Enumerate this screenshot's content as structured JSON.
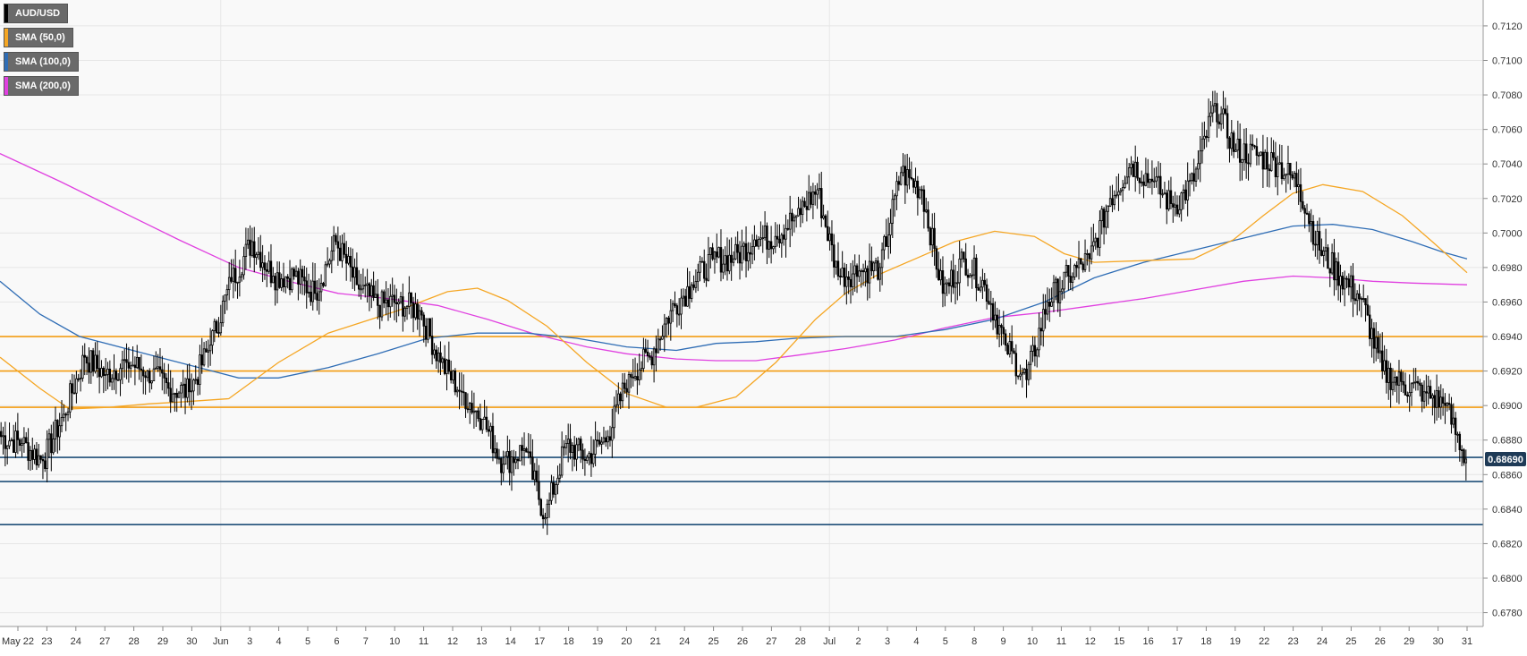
{
  "legend": [
    {
      "label": "AUD/USD",
      "color": "#000000"
    },
    {
      "label": "SMA (50,0)",
      "color": "#f5a623"
    },
    {
      "label": "SMA (100,0)",
      "color": "#2f6db5"
    },
    {
      "label": "SMA (200,0)",
      "color": "#e040e0"
    }
  ],
  "colors": {
    "bull": "#ffffff",
    "bear": "#000000",
    "sma50": "#f5a623",
    "sma100": "#2f6db5",
    "sma200": "#e040e0",
    "resistance": "#f39c12",
    "support": "#1f4e79",
    "plot_bg": "#f9f9f9",
    "grid": "#e6e6e6"
  },
  "chart_data": {
    "type": "candlestick",
    "title": "",
    "xlabel": "",
    "ylabel": "",
    "ylim": [
      0.6772,
      0.7135
    ],
    "y_ticks": [
      "0.7120",
      "0.7100",
      "0.7080",
      "0.7060",
      "0.7040",
      "0.7020",
      "0.7000",
      "0.6980",
      "0.6960",
      "0.6940",
      "0.6920",
      "0.6900",
      "0.6880",
      "0.6860",
      "0.6840",
      "0.6820",
      "0.6800",
      "0.6780"
    ],
    "x_ticks": [
      "May 22",
      "23",
      "24",
      "27",
      "28",
      "29",
      "30",
      "Jun",
      "3",
      "4",
      "5",
      "6",
      "7",
      "10",
      "11",
      "12",
      "13",
      "14",
      "17",
      "18",
      "19",
      "20",
      "21",
      "24",
      "25",
      "26",
      "27",
      "28",
      "Jul",
      "2",
      "3",
      "4",
      "5",
      "8",
      "9",
      "10",
      "11",
      "12",
      "15",
      "16",
      "17",
      "18",
      "19",
      "22",
      "23",
      "24",
      "25",
      "26",
      "29",
      "30",
      "31"
    ],
    "last_price": "0.68690",
    "close_anchors": [
      0.6882,
      0.6878,
      0.6868,
      0.6895,
      0.6928,
      0.6918,
      0.6925,
      0.692,
      0.691,
      0.6908,
      0.6935,
      0.6972,
      0.6995,
      0.6975,
      0.6975,
      0.6965,
      0.6995,
      0.697,
      0.6958,
      0.696,
      0.6955,
      0.6925,
      0.6908,
      0.6892,
      0.6866,
      0.6875,
      0.6835,
      0.6878,
      0.687,
      0.6882,
      0.6918,
      0.6928,
      0.6955,
      0.697,
      0.6985,
      0.6985,
      0.6996,
      0.6998,
      0.701,
      0.7025,
      0.6975,
      0.6978,
      0.698,
      0.7035,
      0.7025,
      0.6965,
      0.6985,
      0.697,
      0.6935,
      0.6915,
      0.696,
      0.6975,
      0.6985,
      0.702,
      0.704,
      0.703,
      0.7015,
      0.703,
      0.7075,
      0.7048,
      0.7045,
      0.704,
      0.7028,
      0.699,
      0.6975,
      0.6962,
      0.692,
      0.6912,
      0.6908,
      0.69,
      0.6869
    ],
    "sma50": [
      [
        0,
        0.6928
      ],
      [
        40,
        0.691
      ],
      [
        70,
        0.6898
      ],
      [
        110,
        0.6899
      ],
      [
        150,
        0.6901
      ],
      [
        180,
        0.6902
      ],
      [
        230,
        0.6904
      ],
      [
        280,
        0.6925
      ],
      [
        330,
        0.6942
      ],
      [
        400,
        0.6955
      ],
      [
        450,
        0.6966
      ],
      [
        480,
        0.6968
      ],
      [
        510,
        0.6961
      ],
      [
        550,
        0.6946
      ],
      [
        590,
        0.6925
      ],
      [
        630,
        0.6907
      ],
      [
        670,
        0.6899
      ],
      [
        700,
        0.6899
      ],
      [
        740,
        0.6905
      ],
      [
        780,
        0.6925
      ],
      [
        820,
        0.695
      ],
      [
        850,
        0.6965
      ],
      [
        880,
        0.6975
      ],
      [
        920,
        0.6985
      ],
      [
        960,
        0.6995
      ],
      [
        1000,
        0.7001
      ],
      [
        1040,
        0.6998
      ],
      [
        1070,
        0.6988
      ],
      [
        1100,
        0.6983
      ],
      [
        1150,
        0.6984
      ],
      [
        1200,
        0.6985
      ],
      [
        1240,
        0.6996
      ],
      [
        1270,
        0.701
      ],
      [
        1300,
        0.7023
      ],
      [
        1330,
        0.7028
      ],
      [
        1370,
        0.7024
      ],
      [
        1410,
        0.701
      ],
      [
        1440,
        0.6995
      ],
      [
        1475,
        0.6977
      ]
    ],
    "sma100": [
      [
        0,
        0.6972
      ],
      [
        40,
        0.6953
      ],
      [
        80,
        0.694
      ],
      [
        120,
        0.6934
      ],
      [
        160,
        0.6928
      ],
      [
        200,
        0.6922
      ],
      [
        240,
        0.6916
      ],
      [
        280,
        0.6916
      ],
      [
        330,
        0.6922
      ],
      [
        380,
        0.693
      ],
      [
        430,
        0.6939
      ],
      [
        480,
        0.6942
      ],
      [
        530,
        0.6942
      ],
      [
        580,
        0.6939
      ],
      [
        630,
        0.6934
      ],
      [
        680,
        0.6932
      ],
      [
        720,
        0.6936
      ],
      [
        760,
        0.6937
      ],
      [
        800,
        0.6939
      ],
      [
        850,
        0.694
      ],
      [
        900,
        0.694
      ],
      [
        950,
        0.6944
      ],
      [
        1000,
        0.695
      ],
      [
        1050,
        0.696
      ],
      [
        1100,
        0.6974
      ],
      [
        1150,
        0.6983
      ],
      [
        1200,
        0.699
      ],
      [
        1250,
        0.6997
      ],
      [
        1300,
        0.7004
      ],
      [
        1340,
        0.7005
      ],
      [
        1380,
        0.7002
      ],
      [
        1420,
        0.6995
      ],
      [
        1450,
        0.6989
      ],
      [
        1475,
        0.6985
      ]
    ],
    "sma200": [
      [
        0,
        0.7046
      ],
      [
        60,
        0.703
      ],
      [
        120,
        0.7013
      ],
      [
        180,
        0.6996
      ],
      [
        240,
        0.698
      ],
      [
        290,
        0.6972
      ],
      [
        340,
        0.6965
      ],
      [
        390,
        0.6962
      ],
      [
        440,
        0.6958
      ],
      [
        490,
        0.695
      ],
      [
        540,
        0.6941
      ],
      [
        590,
        0.6934
      ],
      [
        630,
        0.693
      ],
      [
        680,
        0.6927
      ],
      [
        720,
        0.6926
      ],
      [
        760,
        0.6926
      ],
      [
        800,
        0.6929
      ],
      [
        850,
        0.6933
      ],
      [
        900,
        0.6938
      ],
      [
        950,
        0.6945
      ],
      [
        1000,
        0.6951
      ],
      [
        1050,
        0.6954
      ],
      [
        1100,
        0.6958
      ],
      [
        1150,
        0.6962
      ],
      [
        1200,
        0.6967
      ],
      [
        1250,
        0.6972
      ],
      [
        1300,
        0.6975
      ],
      [
        1340,
        0.6974
      ],
      [
        1380,
        0.6972
      ],
      [
        1420,
        0.6971
      ],
      [
        1475,
        0.697
      ]
    ],
    "resistance_levels": [
      0.694,
      0.692,
      0.6899
    ],
    "support_levels": [
      0.687,
      0.6856,
      0.6831
    ],
    "grid": true,
    "legend_position": "top-left"
  }
}
